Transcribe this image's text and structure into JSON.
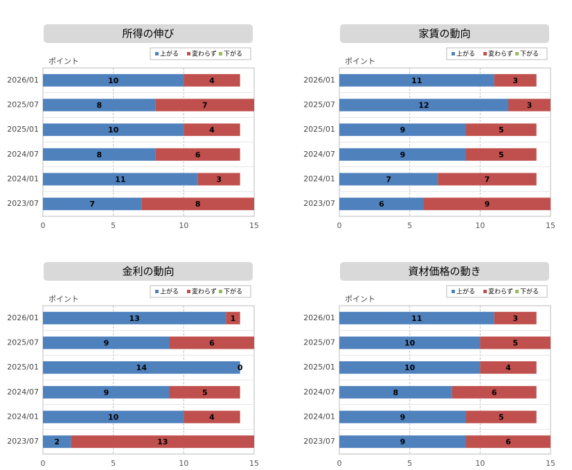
{
  "chart_data": [
    {
      "type": "stacked-barh",
      "title": "所得の伸び",
      "axis_label": "ポイント",
      "categories": [
        "2026/01",
        "2025/07",
        "2025/01",
        "2024/07",
        "2024/01",
        "2023/07"
      ],
      "series": [
        {
          "name": "上がる",
          "color": "#4f81bd",
          "values": [
            10,
            8,
            10,
            8,
            11,
            7
          ]
        },
        {
          "name": "変わらず",
          "color": "#c0504d",
          "values": [
            4,
            7,
            4,
            6,
            3,
            8
          ]
        },
        {
          "name": "下がる",
          "color": "#9bbb59",
          "values": [
            0,
            0,
            0,
            0,
            0,
            0
          ]
        }
      ],
      "xlim": [
        0,
        15
      ],
      "xticks": [
        0,
        5,
        10,
        15
      ],
      "grid": true,
      "legend": "top-right"
    },
    {
      "type": "stacked-barh",
      "title": "家賃の動向",
      "axis_label": "ポイント",
      "categories": [
        "2026/01",
        "2025/07",
        "2025/01",
        "2024/07",
        "2024/01",
        "2023/07"
      ],
      "series": [
        {
          "name": "上がる",
          "color": "#4f81bd",
          "values": [
            11,
            12,
            9,
            9,
            7,
            6
          ]
        },
        {
          "name": "変わらず",
          "color": "#c0504d",
          "values": [
            3,
            3,
            5,
            5,
            7,
            9
          ]
        },
        {
          "name": "下がる",
          "color": "#9bbb59",
          "values": [
            0,
            0,
            0,
            0,
            0,
            0
          ]
        }
      ],
      "xlim": [
        0,
        15
      ],
      "xticks": [
        0,
        5,
        10,
        15
      ],
      "grid": true,
      "legend": "top-right"
    },
    {
      "type": "stacked-barh",
      "title": "金利の動向",
      "axis_label": "ポイント",
      "categories": [
        "2026/01",
        "2025/07",
        "2025/01",
        "2024/07",
        "2024/01",
        "2023/07"
      ],
      "series": [
        {
          "name": "上がる",
          "color": "#4f81bd",
          "values": [
            13,
            9,
            14,
            9,
            10,
            2
          ]
        },
        {
          "name": "変わらず",
          "color": "#c0504d",
          "values": [
            1,
            6,
            0,
            5,
            4,
            13
          ]
        },
        {
          "name": "下がる",
          "color": "#9bbb59",
          "values": [
            0,
            0,
            0,
            0,
            0,
            0
          ]
        }
      ],
      "xlim": [
        0,
        15
      ],
      "xticks": [
        0,
        5,
        10,
        15
      ],
      "grid": true,
      "legend": "top-right"
    },
    {
      "type": "stacked-barh",
      "title": "資材価格の動き",
      "axis_label": "ポイント",
      "categories": [
        "2026/01",
        "2025/07",
        "2025/01",
        "2024/07",
        "2024/01",
        "2023/07"
      ],
      "series": [
        {
          "name": "上がる",
          "color": "#4f81bd",
          "values": [
            11,
            10,
            10,
            8,
            9,
            9
          ]
        },
        {
          "name": "変わらず",
          "color": "#c0504d",
          "values": [
            3,
            5,
            4,
            6,
            5,
            6
          ]
        },
        {
          "name": "下がる",
          "color": "#9bbb59",
          "values": [
            0,
            0,
            0,
            0,
            0,
            0
          ]
        }
      ],
      "xlim": [
        0,
        15
      ],
      "xticks": [
        0,
        5,
        10,
        15
      ],
      "grid": true,
      "legend": "top-right"
    }
  ]
}
